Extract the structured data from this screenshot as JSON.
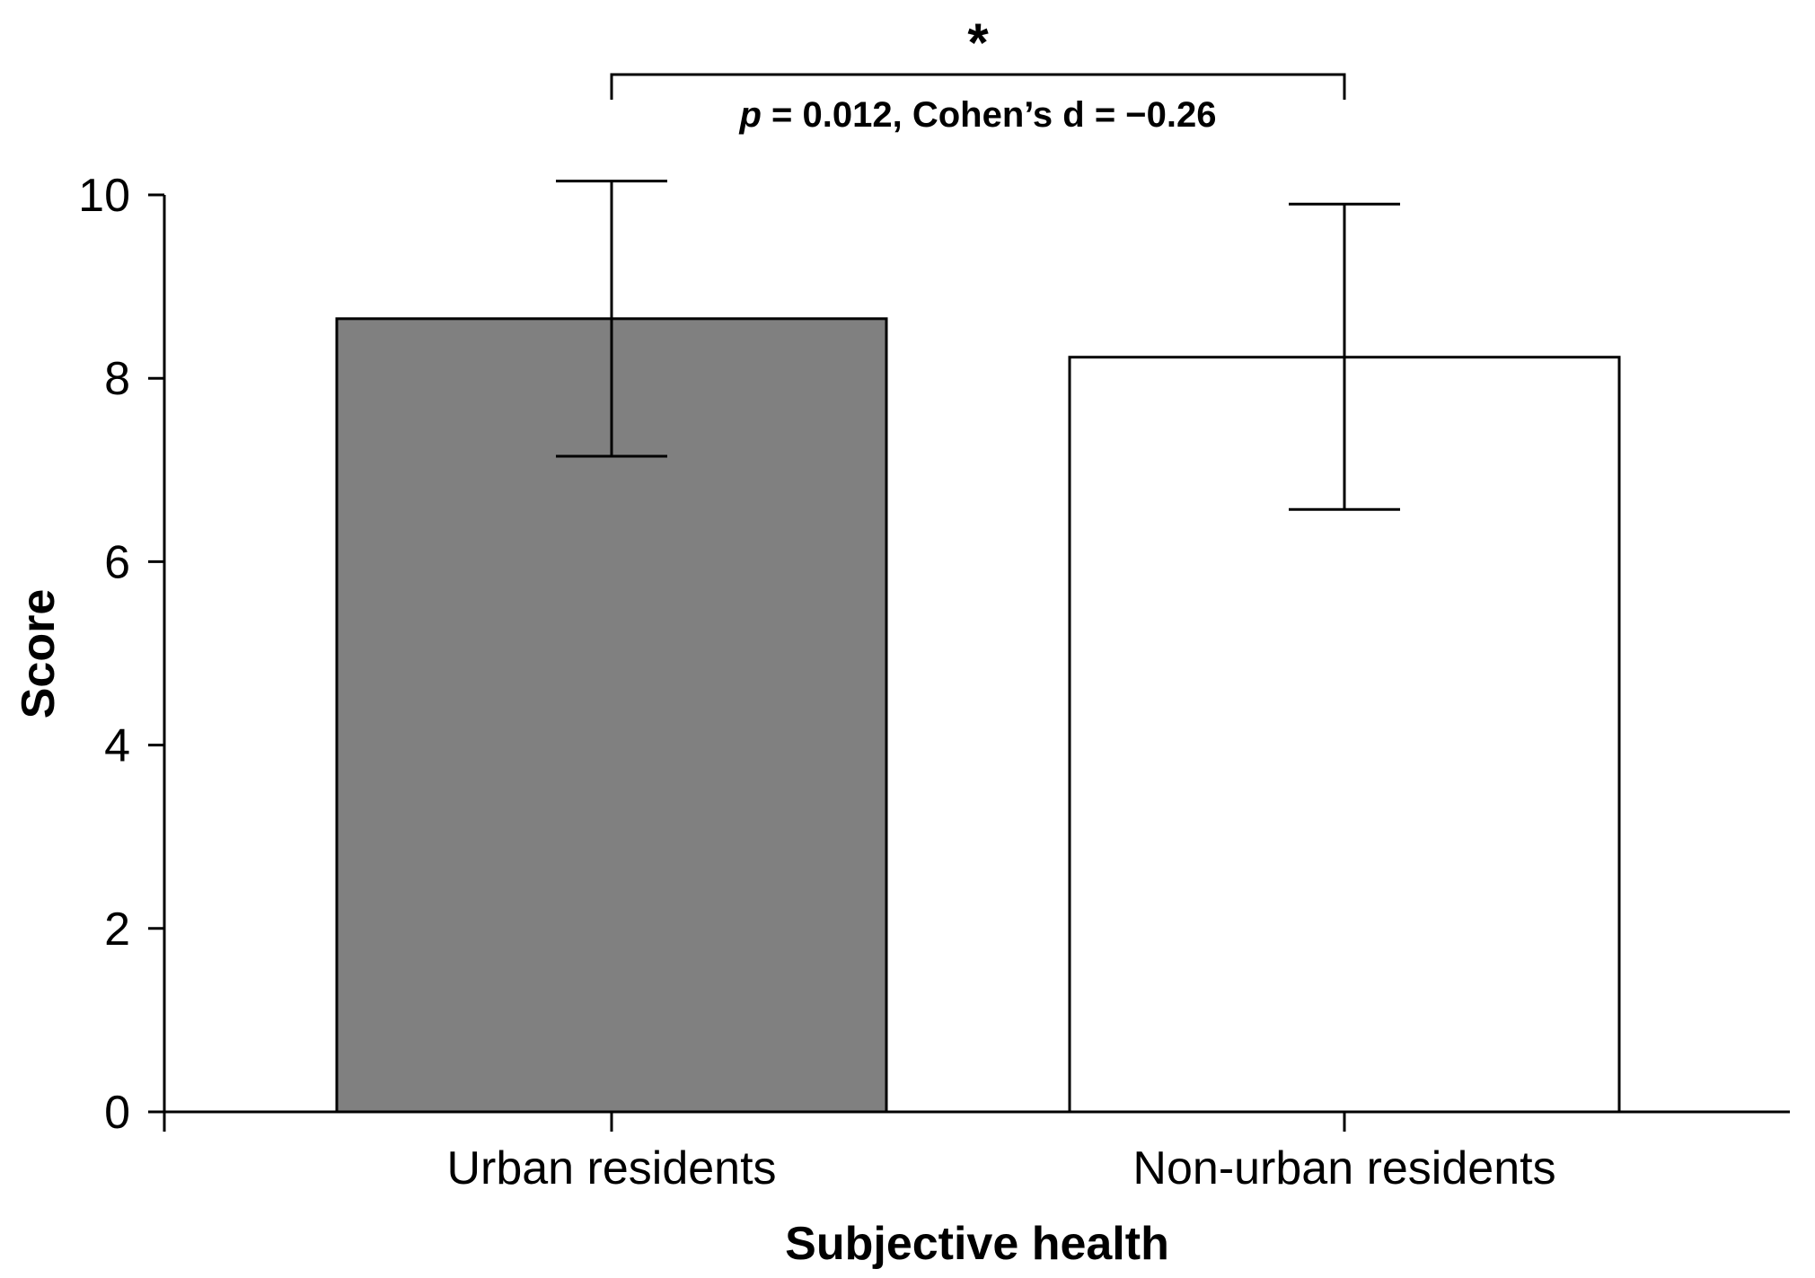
{
  "chart_data": {
    "type": "bar",
    "categories": [
      "Urban residents",
      "Non-urban residents"
    ],
    "values": [
      8.65,
      8.23
    ],
    "error_bars": [
      {
        "low": 7.15,
        "high": 10.15
      },
      {
        "low": 6.57,
        "high": 9.9
      }
    ],
    "bar_colors": [
      "#808080",
      "#ffffff"
    ],
    "xlabel": "Subjective health",
    "ylabel": "Score",
    "ylim": [
      0,
      10
    ],
    "yticks": [
      "0",
      "2",
      "4",
      "6",
      "8",
      "10"
    ],
    "grid": false,
    "annotation": {
      "marker": "*",
      "p_symbol": "p",
      "text": " = 0.012, Cohen’s d = −0.26",
      "between": [
        0,
        1
      ]
    }
  }
}
